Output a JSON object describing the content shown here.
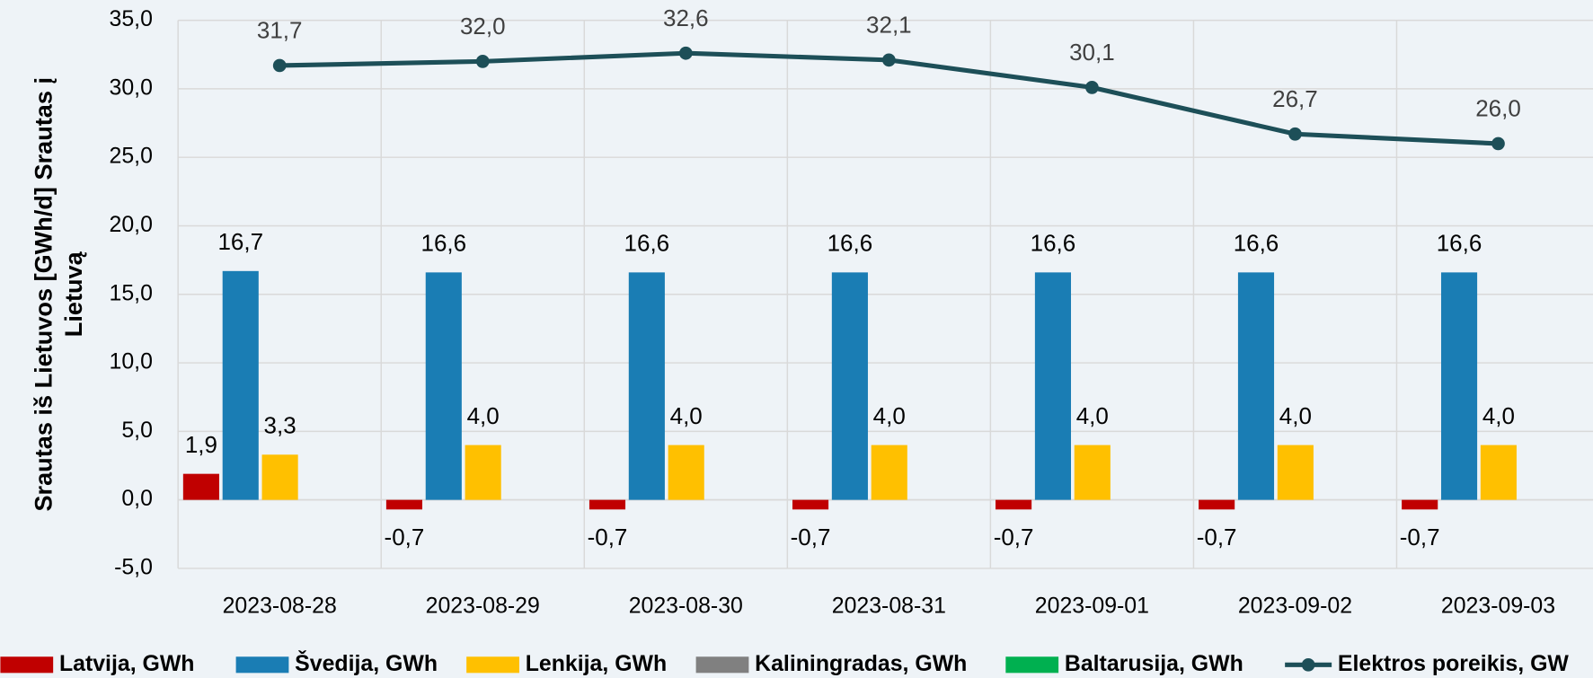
{
  "chart_data": {
    "type": "bar",
    "y_label": [
      "Srautas iš Lietuvos [GWh/d] Srautas į",
      "Lietuvą"
    ],
    "categories": [
      "2023-08-28",
      "2023-08-29",
      "2023-08-30",
      "2023-08-31",
      "2023-09-01",
      "2023-09-02",
      "2023-09-03"
    ],
    "series": [
      {
        "name": "Latvija, GWh",
        "type": "bar",
        "color": "#c00000",
        "values": [
          1.9,
          -0.7,
          -0.7,
          -0.7,
          -0.7,
          -0.7,
          -0.7
        ],
        "value_labels": [
          "1,9",
          "-0,7",
          "-0,7",
          "-0,7",
          "-0,7",
          "-0,7",
          "-0,7"
        ]
      },
      {
        "name": "Švedija, GWh",
        "type": "bar",
        "color": "#1a7db4",
        "values": [
          16.7,
          16.6,
          16.6,
          16.6,
          16.6,
          16.6,
          16.6
        ],
        "value_labels": [
          "16,7",
          "16,6",
          "16,6",
          "16,6",
          "16,6",
          "16,6",
          "16,6"
        ]
      },
      {
        "name": "Lenkija, GWh",
        "type": "bar",
        "color": "#ffc000",
        "values": [
          3.3,
          4.0,
          4.0,
          4.0,
          4.0,
          4.0,
          4.0
        ],
        "value_labels": [
          "3,3",
          "4,0",
          "4,0",
          "4,0",
          "4,0",
          "4,0",
          "4,0"
        ]
      },
      {
        "name": "Kaliningradas, GWh",
        "type": "bar",
        "color": "#808080",
        "values": [
          0,
          0,
          0,
          0,
          0,
          0,
          0
        ]
      },
      {
        "name": "Baltarusija, GWh",
        "type": "bar",
        "color": "#00b050",
        "values": [
          0,
          0,
          0,
          0,
          0,
          0,
          0
        ]
      },
      {
        "name": "Elektros poreikis, GW",
        "type": "line",
        "color": "#1d4f58",
        "values": [
          31.7,
          32.0,
          32.6,
          32.1,
          30.1,
          26.7,
          26.0
        ],
        "value_labels": [
          "31,7",
          "32,0",
          "32,6",
          "32,1",
          "30,1",
          "26,7",
          "26,0"
        ]
      }
    ],
    "ylim": [
      -5,
      35
    ],
    "yticks": [
      {
        "value": -5,
        "label": "-5,0"
      },
      {
        "value": 0,
        "label": "0,0"
      },
      {
        "value": 5,
        "label": "5,0"
      },
      {
        "value": 10,
        "label": "10,0"
      },
      {
        "value": 15,
        "label": "15,0"
      },
      {
        "value": 20,
        "label": "20,0"
      },
      {
        "value": 25,
        "label": "25,0"
      },
      {
        "value": 30,
        "label": "30,0"
      },
      {
        "value": 35,
        "label": "35,0"
      }
    ],
    "grid": true,
    "legend": "bottom"
  }
}
